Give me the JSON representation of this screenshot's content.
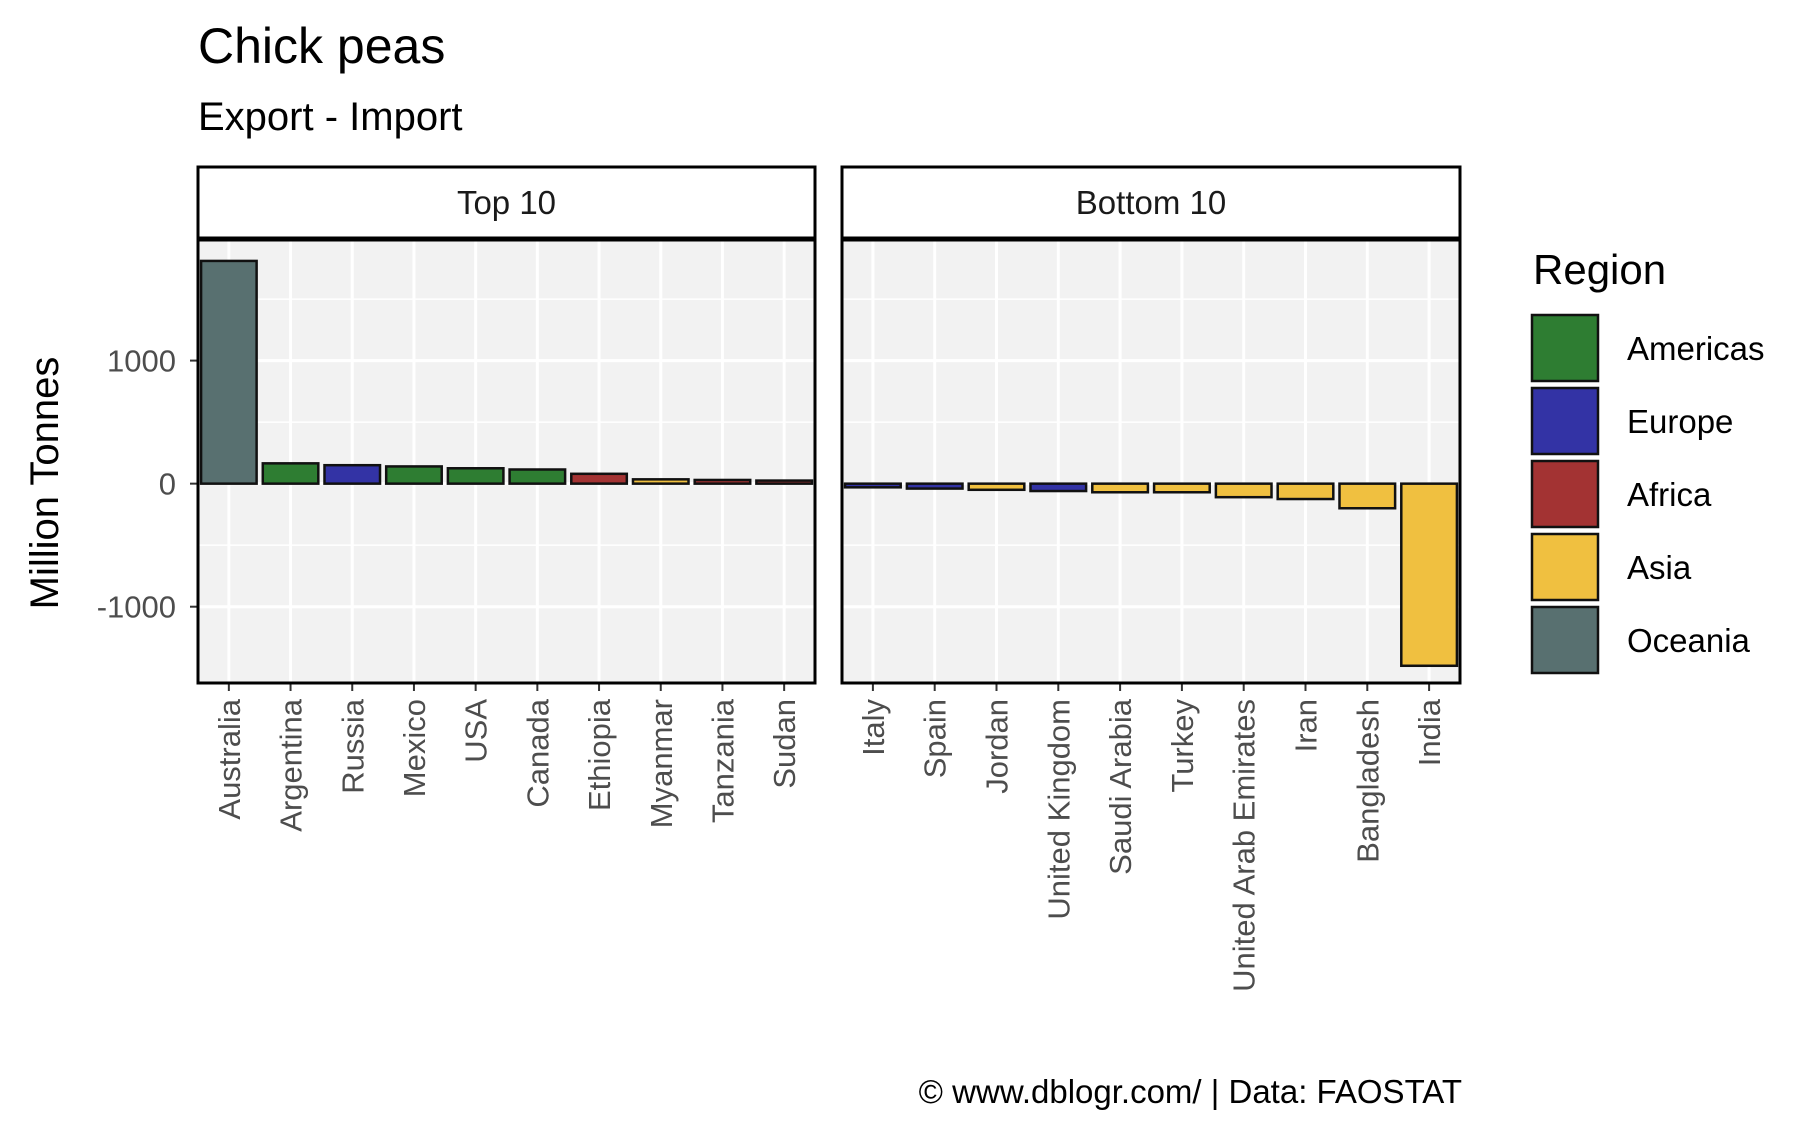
{
  "chart_data": {
    "type": "bar",
    "title": "Chick peas",
    "subtitle": "Export - Import",
    "ylabel": "Million Tonnes",
    "ylim": [
      -1620,
      1980
    ],
    "yticks": [
      1000,
      0,
      -1000
    ],
    "ytick_labels": [
      "1000",
      "0",
      "-1000"
    ],
    "grid": true,
    "legend": {
      "title": "Region",
      "placement": "right",
      "entries": [
        {
          "name": "Americas",
          "color": "#2e7d32"
        },
        {
          "name": "Europe",
          "color": "#3333a5"
        },
        {
          "name": "Africa",
          "color": "#a33333"
        },
        {
          "name": "Asia",
          "color": "#f0c040"
        },
        {
          "name": "Oceania",
          "color": "#587070"
        }
      ]
    },
    "panels": [
      {
        "label": "Top 10",
        "categories": [
          "Australia",
          "Argentina",
          "Russia",
          "Mexico",
          "USA",
          "Canada",
          "Ethiopia",
          "Myanmar",
          "Tanzania",
          "Sudan"
        ],
        "values": [
          1810,
          165,
          150,
          140,
          125,
          115,
          80,
          35,
          30,
          25
        ],
        "regions": [
          "Oceania",
          "Americas",
          "Europe",
          "Americas",
          "Americas",
          "Americas",
          "Africa",
          "Asia",
          "Africa",
          "Africa"
        ]
      },
      {
        "label": "Bottom 10",
        "categories": [
          "Italy",
          "Spain",
          "Jordan",
          "United Kingdom",
          "Saudi Arabia",
          "Turkey",
          "United Arab Emirates",
          "Iran",
          "Bangladesh",
          "India"
        ],
        "values": [
          -30,
          -40,
          -50,
          -60,
          -70,
          -70,
          -110,
          -125,
          -200,
          -1480
        ],
        "regions": [
          "Europe",
          "Europe",
          "Asia",
          "Europe",
          "Asia",
          "Asia",
          "Asia",
          "Asia",
          "Asia",
          "Asia"
        ]
      }
    ]
  },
  "caption": "© www.dblogr.com/  |  Data: FAOSTAT"
}
